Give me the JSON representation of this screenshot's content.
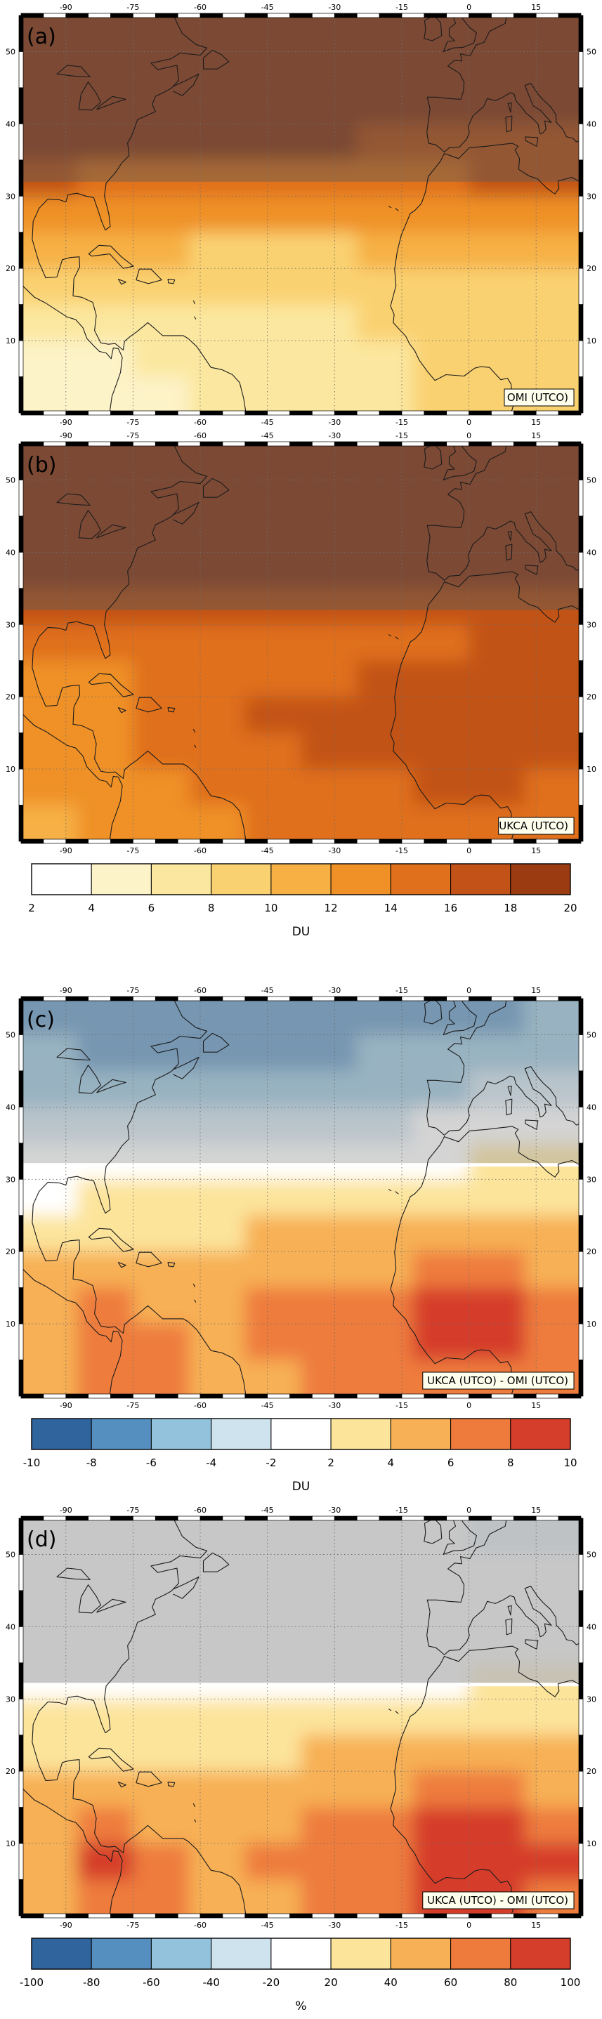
{
  "panels": [
    {
      "id": "a",
      "letter": "(a)",
      "label": "OMI (UTCO)"
    },
    {
      "id": "b",
      "letter": "(b)",
      "label": "UKCA (UTCO)"
    },
    {
      "id": "c",
      "letter": "(c)",
      "label": "UKCA (UTCO) - OMI (UTCO)"
    },
    {
      "id": "d",
      "letter": "(d)",
      "label": "UKCA (UTCO) - OMI (UTCO)"
    }
  ],
  "axes": {
    "lon_ticks": [
      -90,
      -75,
      -60,
      -45,
      -30,
      -15,
      0,
      15
    ],
    "lon_labels": [
      "-90",
      "-75",
      "-60",
      "-45",
      "-30",
      "-15",
      "0",
      "15"
    ],
    "lat_ticks": [
      50,
      40,
      30,
      20,
      10
    ],
    "lat_labels": [
      "50",
      "40",
      "30",
      "20",
      "10"
    ],
    "lon_range": [
      -100,
      25
    ],
    "lat_range": [
      0,
      55
    ]
  },
  "colorbars": [
    {
      "units": "DU",
      "tick_labels": [
        "2",
        "4",
        "6",
        "8",
        "10",
        "12",
        "14",
        "16",
        "18",
        "20"
      ],
      "colors": [
        "#ffffff",
        "#fdf3c8",
        "#fbe79f",
        "#fad171",
        "#f6b044",
        "#ef9127",
        "#e0701c",
        "#c25218",
        "#9a3b12"
      ]
    },
    {
      "units": "DU",
      "tick_labels": [
        "-10",
        "-8",
        "-6",
        "-4",
        "-2",
        "2",
        "4",
        "6",
        "8",
        "10"
      ],
      "colors": [
        "#30649d",
        "#558fc0",
        "#92c2dc",
        "#cfe3ef",
        "#ffffff",
        "#fce49b",
        "#f7b055",
        "#ee7b3c",
        "#d53e2a"
      ]
    },
    {
      "units": "%",
      "tick_labels": [
        "-100",
        "-80",
        "-60",
        "-40",
        "-20",
        "20",
        "40",
        "60",
        "80",
        "100"
      ],
      "colors": [
        "#30649d",
        "#558fc0",
        "#92c2dc",
        "#cfe3ef",
        "#ffffff",
        "#fce49b",
        "#f7b055",
        "#ee7b3c",
        "#d53e2a"
      ]
    }
  ],
  "chart_data": [
    {
      "type": "heatmap",
      "panel": "a",
      "title": "OMI (UTCO)",
      "units": "DU",
      "lon_range": [
        -100,
        25
      ],
      "lat_range": [
        0,
        55
      ],
      "masked_above_lat": 32,
      "levels": [
        2,
        4,
        6,
        8,
        10,
        12,
        14,
        16,
        18,
        20
      ],
      "values": [
        [
          19,
          19,
          19,
          19,
          19,
          19,
          19,
          19,
          19,
          19
        ],
        [
          19,
          19,
          19,
          19,
          19,
          19,
          19,
          19,
          19,
          19
        ],
        [
          19,
          19,
          19,
          19,
          19,
          19,
          19,
          18.5,
          18.5,
          18.5
        ],
        [
          18.5,
          18.5,
          18.5,
          18.5,
          18.5,
          18.5,
          18,
          18,
          18,
          18
        ],
        [
          16.5,
          16,
          16,
          15.5,
          15.5,
          15.5,
          15.5,
          16,
          16.5,
          16.5
        ],
        [
          13.5,
          13,
          12.5,
          12.5,
          12.5,
          12.5,
          12.5,
          13,
          13.5,
          13.5
        ],
        [
          11,
          10.5,
          10.5,
          10,
          10,
          10,
          10.5,
          11,
          11,
          11
        ],
        [
          9,
          9,
          8.5,
          8.5,
          8.5,
          8.5,
          9,
          9.5,
          9.5,
          9.5
        ],
        [
          8,
          7.5,
          7.5,
          7.5,
          7.5,
          8,
          8.5,
          9,
          9,
          9
        ],
        [
          6,
          5.5,
          6.5,
          7,
          7,
          7.5,
          8,
          8.5,
          9,
          9
        ],
        [
          5,
          4.5,
          5.5,
          6.5,
          6.5,
          7,
          7.5,
          8.5,
          9,
          9
        ]
      ]
    },
    {
      "type": "heatmap",
      "panel": "b",
      "title": "UKCA (UTCO)",
      "units": "DU",
      "lon_range": [
        -100,
        25
      ],
      "lat_range": [
        0,
        55
      ],
      "masked_above_lat": 32,
      "levels": [
        2,
        4,
        6,
        8,
        10,
        12,
        14,
        16,
        18,
        20
      ],
      "values": [
        [
          19,
          19,
          19,
          19,
          19,
          19,
          19,
          19,
          19,
          19
        ],
        [
          19,
          19,
          19,
          19,
          19,
          19,
          19,
          19,
          19,
          19
        ],
        [
          19,
          19,
          19,
          19,
          19,
          19,
          19,
          19,
          19,
          19
        ],
        [
          19,
          19,
          19,
          19,
          19,
          19,
          19,
          19,
          19,
          19
        ],
        [
          17.5,
          17,
          17,
          17,
          17,
          17,
          17,
          17.5,
          18,
          18
        ],
        [
          15,
          14.5,
          14.5,
          14.5,
          14.5,
          15,
          15.5,
          16,
          16.5,
          16.5
        ],
        [
          14,
          14,
          14.5,
          15,
          15.5,
          16,
          16.5,
          17,
          17,
          17
        ],
        [
          13.5,
          14,
          15,
          15.5,
          16.5,
          17,
          17.2,
          17.5,
          17.5,
          17
        ],
        [
          13,
          13.5,
          14.5,
          15,
          16,
          16.5,
          17,
          17.5,
          17.5,
          17
        ],
        [
          12.5,
          13,
          13.5,
          14.5,
          15,
          15.5,
          16,
          16.5,
          16.5,
          16
        ],
        [
          12,
          12.5,
          13,
          14,
          14.5,
          15,
          15,
          15.5,
          16,
          15.5
        ]
      ]
    },
    {
      "type": "heatmap",
      "panel": "c",
      "title": "UKCA (UTCO) - OMI (UTCO)",
      "units": "DU",
      "lon_range": [
        -100,
        25
      ],
      "lat_range": [
        0,
        55
      ],
      "masked_above_lat": 32,
      "levels": [
        -10,
        -8,
        -6,
        -4,
        -2,
        2,
        4,
        6,
        8,
        10
      ],
      "values": [
        [
          -6,
          -6.5,
          -7,
          -7.5,
          -7.5,
          -7,
          -7,
          -6.5,
          -6,
          -5.5
        ],
        [
          -5.5,
          -6,
          -6,
          -6,
          -6,
          -6,
          -5.5,
          -5,
          -5,
          -4.5
        ],
        [
          -4.5,
          -5,
          -5,
          -5,
          -4.5,
          -4.5,
          -4,
          -4,
          -3.5,
          -3.5
        ],
        [
          -3,
          -3,
          -3,
          -3,
          -3,
          -2.5,
          -2.5,
          1,
          2,
          2
        ],
        [
          -1,
          -1,
          -1,
          -1,
          -0.5,
          0,
          0.5,
          1.5,
          2.5,
          2.5
        ],
        [
          2,
          2.5,
          2.5,
          2.5,
          2.5,
          3,
          3,
          3.5,
          3.5,
          3
        ],
        [
          3.5,
          4,
          4,
          4,
          4.5,
          4.5,
          5,
          5,
          5,
          4.5
        ],
        [
          4.5,
          5,
          5,
          5.5,
          5.5,
          6,
          6,
          6.5,
          6.5,
          6
        ],
        [
          5.5,
          6.5,
          6,
          6,
          6.5,
          6.5,
          7,
          8.5,
          8.5,
          8
        ],
        [
          6,
          7.5,
          6.5,
          6,
          6.5,
          6.5,
          7,
          9,
          8.5,
          8
        ],
        [
          6,
          7,
          6.5,
          6,
          6,
          6.5,
          6.5,
          8,
          8,
          7.5
        ]
      ]
    },
    {
      "type": "heatmap",
      "panel": "d",
      "title": "UKCA (UTCO) - OMI (UTCO)",
      "units": "%",
      "lon_range": [
        -100,
        25
      ],
      "lat_range": [
        0,
        55
      ],
      "masked_above_lat": 32,
      "levels": [
        -100,
        -80,
        -60,
        -40,
        -20,
        20,
        40,
        60,
        80,
        100
      ],
      "values": [
        [
          0,
          0,
          0,
          0,
          0,
          0,
          0,
          -5,
          -25,
          -25
        ],
        [
          0,
          0,
          0,
          0,
          0,
          0,
          0,
          0,
          -5,
          -5
        ],
        [
          0,
          0,
          0,
          0,
          0,
          0,
          0,
          0,
          0,
          0
        ],
        [
          0,
          0,
          0,
          0,
          0,
          0,
          0,
          10,
          10,
          10
        ],
        [
          5,
          5,
          5,
          5,
          5,
          10,
          10,
          20,
          25,
          25
        ],
        [
          25,
          25,
          25,
          25,
          25,
          30,
          30,
          35,
          35,
          30
        ],
        [
          35,
          40,
          40,
          40,
          40,
          45,
          45,
          50,
          50,
          45
        ],
        [
          45,
          50,
          50,
          50,
          55,
          55,
          60,
          65,
          65,
          60
        ],
        [
          55,
          70,
          60,
          60,
          60,
          65,
          70,
          90,
          85,
          80
        ],
        [
          60,
          85,
          70,
          60,
          65,
          65,
          70,
          95,
          90,
          85
        ],
        [
          60,
          75,
          65,
          60,
          60,
          65,
          70,
          85,
          85,
          80
        ]
      ]
    }
  ]
}
